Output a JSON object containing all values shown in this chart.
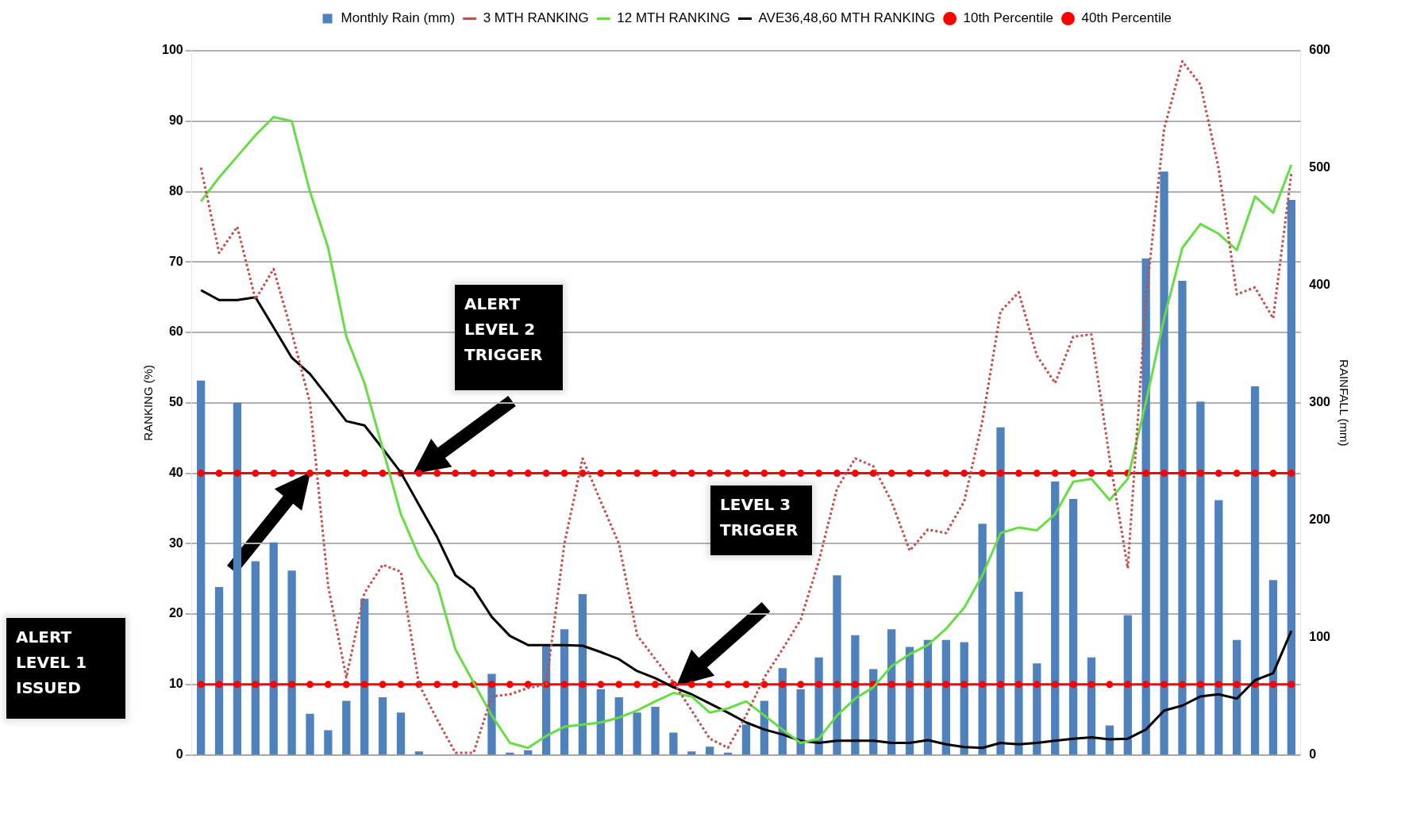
{
  "chart_data": {
    "type": "line",
    "ylabel": "RANKING (%)",
    "y2label": "RAINFALL (mm)",
    "categories": [
      null,
      null,
      null,
      null,
      null,
      null,
      null,
      null,
      null,
      null,
      null,
      null,
      null,
      null,
      null,
      null,
      null,
      null,
      null,
      null,
      null,
      null,
      null,
      null,
      null,
      null,
      null,
      null,
      null,
      null,
      null,
      null,
      null,
      null,
      null,
      null,
      null,
      null,
      null,
      null,
      null,
      null,
      null,
      null,
      null,
      null,
      null,
      null,
      null,
      null,
      null,
      null,
      null,
      null,
      null,
      null,
      null,
      null,
      null,
      null,
      null
    ],
    "series": [
      {
        "name": "Monthly Rain (mm)",
        "type": "bar",
        "axis": "y2",
        "color": "#4f81bd",
        "values": [
          319,
          143,
          300,
          165,
          181,
          157,
          35,
          21,
          46,
          133,
          49,
          36,
          3,
          0,
          0,
          0,
          69,
          2,
          4,
          93,
          107,
          137,
          56,
          49,
          36,
          41,
          19,
          3,
          7,
          2,
          26,
          46,
          74,
          56,
          83,
          153,
          102,
          73,
          107,
          92,
          98,
          98,
          96,
          197,
          279,
          139,
          78,
          233,
          218,
          83,
          25,
          119,
          423,
          497,
          404,
          301,
          217,
          98,
          314,
          149,
          473
        ]
      },
      {
        "name": "3 MTH RANKING",
        "color": "#c0504d",
        "line_style": "dotted",
        "marker": "none",
        "values": [
          83.4,
          71.3,
          75,
          64.7,
          69,
          60,
          50,
          24,
          11,
          23,
          27,
          26,
          10,
          5,
          0.3,
          0.3,
          8.3,
          8.6,
          9.5,
          10,
          30,
          42.1,
          36,
          30,
          17,
          13.6,
          10.3,
          6.3,
          2.3,
          1,
          5.6,
          11,
          15,
          19.2,
          27.5,
          37.8,
          42.1,
          41,
          36,
          29,
          32,
          31.5,
          36,
          47.4,
          63,
          65.7,
          56.7,
          52.8,
          59.4,
          59.7,
          42.1,
          26.5,
          64.7,
          88.9,
          98.5,
          95.2,
          83.3,
          65.4,
          66.4,
          62,
          82.6
        ]
      },
      {
        "name": "12 MTH RANKING",
        "color": "#66dd44",
        "line_style": "solid",
        "marker": "none",
        "values": [
          78.6,
          82,
          85,
          88,
          90.6,
          90,
          80,
          72,
          59.4,
          52.8,
          43.5,
          34.2,
          28.2,
          24.2,
          15,
          10.3,
          5.6,
          1.7,
          1,
          2.7,
          4,
          4.3,
          4.6,
          5.3,
          6.3,
          7.6,
          8.8,
          8.3,
          6,
          6.6,
          7.6,
          5.6,
          3.6,
          1.7,
          2.3,
          5.6,
          8,
          9.6,
          12.6,
          14.3,
          15.6,
          17.9,
          20.9,
          25.5,
          31.5,
          32.3,
          31.9,
          34.2,
          38.8,
          39.2,
          36.2,
          39.2,
          50.1,
          62,
          72,
          75.4,
          74,
          71.7,
          79.3,
          77,
          83.8
        ]
      },
      {
        "name": "AVE36,48,60 MTH RANKING",
        "color": "#000000",
        "line_style": "solid",
        "marker": "none",
        "values": [
          66,
          64.6,
          64.6,
          65,
          60.7,
          56.4,
          54.1,
          50.8,
          47.4,
          46.8,
          43.5,
          40.1,
          35.5,
          30.9,
          25.5,
          23.6,
          19.6,
          16.9,
          15.6,
          15.6,
          15.6,
          15.5,
          14.6,
          13.6,
          11.9,
          10.9,
          9.6,
          8.6,
          7.3,
          6,
          4.6,
          3.6,
          2.9,
          2,
          1.7,
          2,
          2,
          2,
          1.7,
          1.7,
          2.1,
          1.5,
          1.1,
          1,
          1.7,
          1.5,
          1.7,
          2,
          2.3,
          2.5,
          2.2,
          2.3,
          3.6,
          6.3,
          7,
          8.3,
          8.6,
          8,
          10.6,
          11.6,
          17.6
        ]
      },
      {
        "name": "10th Percentile",
        "color": "#ff0000",
        "line_style": "solid",
        "marker": "circle",
        "values": [
          10,
          10,
          10,
          10,
          10,
          10,
          10,
          10,
          10,
          10,
          10,
          10,
          10,
          10,
          10,
          10,
          10,
          10,
          10,
          10,
          10,
          10,
          10,
          10,
          10,
          10,
          10,
          10,
          10,
          10,
          10,
          10,
          10,
          10,
          10,
          10,
          10,
          10,
          10,
          10,
          10,
          10,
          10,
          10,
          10,
          10,
          10,
          10,
          10,
          10,
          10,
          10,
          10,
          10,
          10,
          10,
          10,
          10,
          10,
          10,
          10
        ]
      },
      {
        "name": "40th Percentile",
        "color": "#ff0000",
        "line_style": "solid",
        "marker": "circle",
        "values": [
          40,
          40,
          40,
          40,
          40,
          40,
          40,
          40,
          40,
          40,
          40,
          40,
          40,
          40,
          40,
          40,
          40,
          40,
          40,
          40,
          40,
          40,
          40,
          40,
          40,
          40,
          40,
          40,
          40,
          40,
          40,
          40,
          40,
          40,
          40,
          40,
          40,
          40,
          40,
          40,
          40,
          40,
          40,
          40,
          40,
          40,
          40,
          40,
          40,
          40,
          40,
          40,
          40,
          40,
          40,
          40,
          40,
          40,
          40,
          40,
          40
        ]
      }
    ],
    "ylim": [
      0,
      100
    ],
    "yticks": [
      0,
      10,
      20,
      30,
      40,
      50,
      60,
      70,
      80,
      90,
      100
    ],
    "y2lim": [
      0,
      600
    ],
    "y2ticks": [
      0,
      100,
      200,
      300,
      400,
      500,
      600
    ],
    "grid": "y",
    "legend": "top",
    "annotations": [
      "ALERT LEVEL 1 ISSUED",
      "ALERT LEVEL 2 TRIGGER",
      "LEVEL 3 TRIGGER"
    ]
  }
}
